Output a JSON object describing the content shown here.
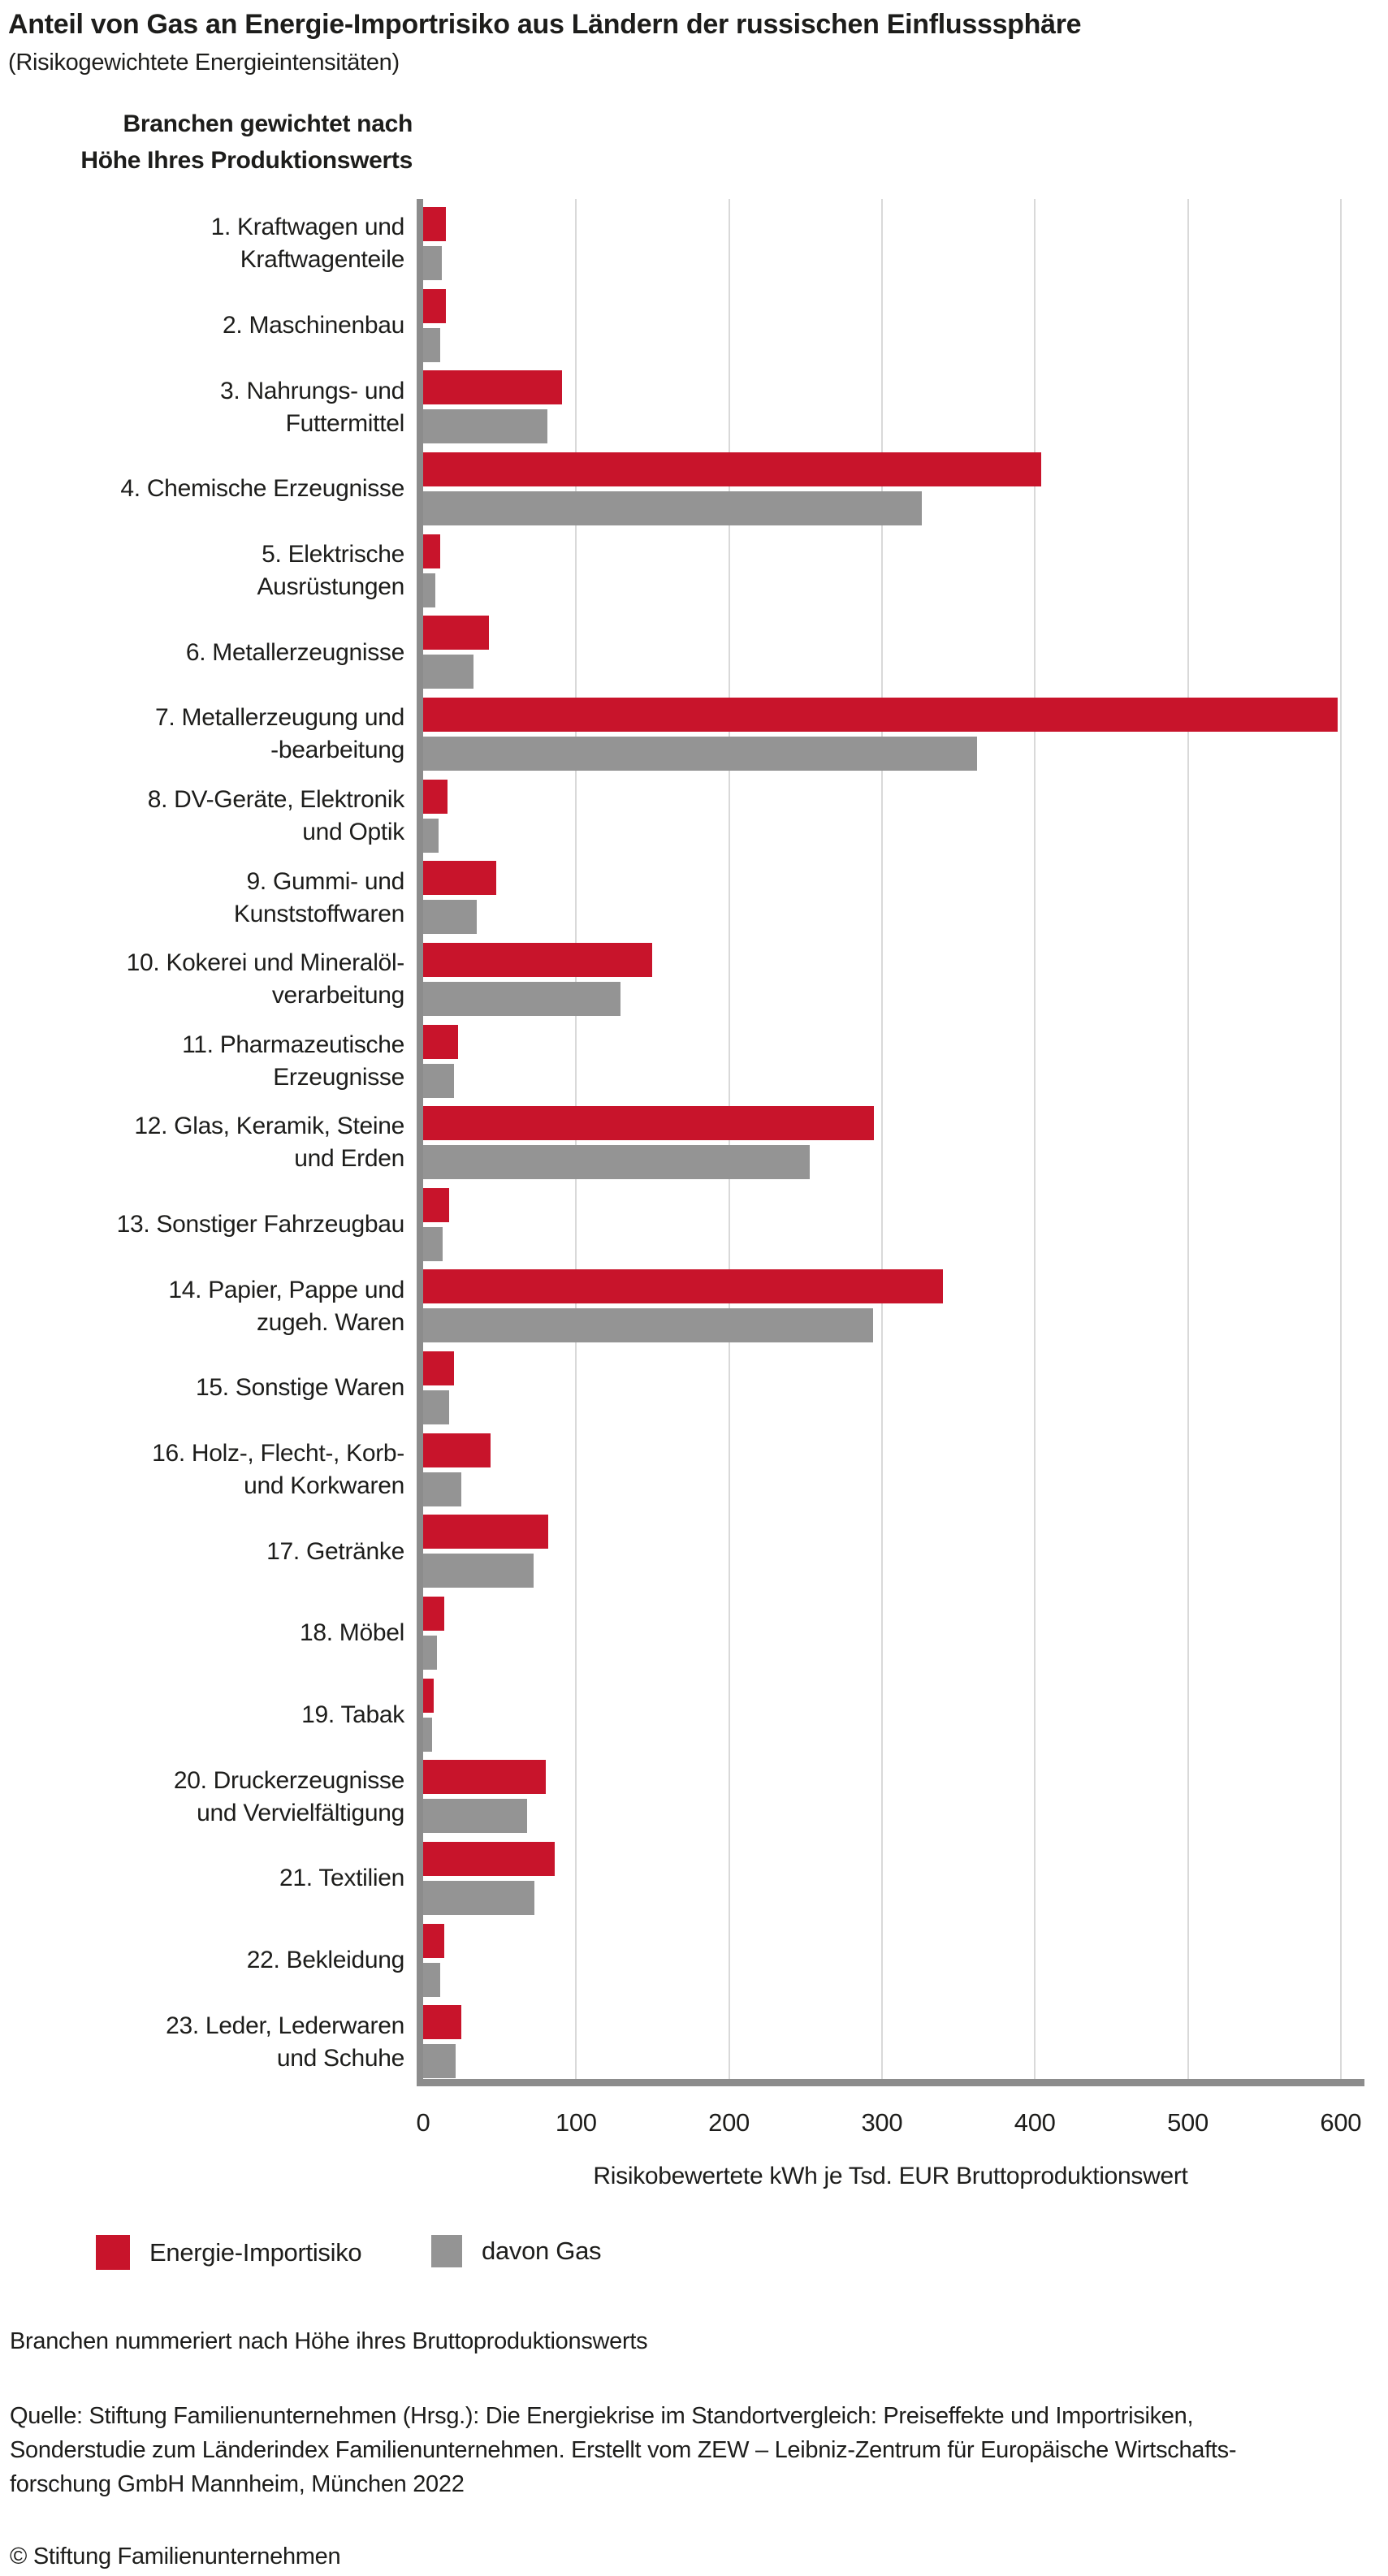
{
  "title": "Anteil von Gas an Energie-Importrisiko aus Ländern der russischen Einflusssphäre",
  "subtitle": "(Risikogewichtete Energieintensitäten)",
  "column_header": {
    "line1": "Branchen gewichtet nach",
    "line2": "Höhe Ihres Produktionswerts"
  },
  "chart_data": {
    "type": "bar",
    "orientation": "horizontal",
    "title": "Anteil von Gas an Energie-Importrisiko aus Ländern der russischen Einflusssphäre",
    "xlabel": "Risikobewertete kWh je Tsd. EUR Bruttoproduktionswert",
    "ylabel": "Branchen gewichtet nach Höhe Ihres Produktionswerts",
    "xlim": [
      0,
      600
    ],
    "xticks": [
      0,
      100,
      200,
      300,
      400,
      500,
      600
    ],
    "grid": true,
    "legend_position": "bottom",
    "categories": [
      {
        "lines": [
          "1. Kraftwagen und",
          "Kraftwagenteile"
        ]
      },
      {
        "lines": [
          "2. Maschinenbau"
        ]
      },
      {
        "lines": [
          "3. Nahrungs- und",
          "Futtermittel"
        ]
      },
      {
        "lines": [
          "4. Chemische Erzeugnisse"
        ]
      },
      {
        "lines": [
          "5. Elektrische",
          "Ausrüstungen"
        ]
      },
      {
        "lines": [
          "6. Metallerzeugnisse"
        ]
      },
      {
        "lines": [
          "7. Metallerzeugung und",
          "-bearbeitung"
        ]
      },
      {
        "lines": [
          "8. DV-Geräte, Elektronik",
          "und Optik"
        ]
      },
      {
        "lines": [
          "9. Gummi- und",
          "Kunststoffwaren"
        ]
      },
      {
        "lines": [
          "10. Kokerei und Mineralöl-",
          "verarbeitung"
        ]
      },
      {
        "lines": [
          "11. Pharmazeutische",
          "Erzeugnisse"
        ]
      },
      {
        "lines": [
          "12. Glas, Keramik, Steine",
          "und Erden"
        ]
      },
      {
        "lines": [
          "13. Sonstiger Fahrzeugbau"
        ]
      },
      {
        "lines": [
          "14. Papier, Pappe und",
          "zugeh. Waren"
        ]
      },
      {
        "lines": [
          "15. Sonstige Waren"
        ]
      },
      {
        "lines": [
          "16. Holz-, Flecht-, Korb-",
          "und Korkwaren"
        ]
      },
      {
        "lines": [
          "17. Getränke"
        ]
      },
      {
        "lines": [
          "18. Möbel"
        ]
      },
      {
        "lines": [
          "19. Tabak"
        ]
      },
      {
        "lines": [
          "20. Druckerzeugnisse",
          "und Vervielfältigung"
        ]
      },
      {
        "lines": [
          "21. Textilien"
        ]
      },
      {
        "lines": [
          "22. Bekleidung"
        ]
      },
      {
        "lines": [
          "23. Leder, Lederwaren",
          "und Schuhe"
        ]
      }
    ],
    "series": [
      {
        "name": "Energie-Importisiko",
        "color": "#c8142b",
        "values": [
          15,
          15,
          91,
          404,
          11,
          43,
          598,
          16,
          48,
          150,
          23,
          295,
          17,
          340,
          20,
          44,
          82,
          14,
          7,
          80,
          86,
          14,
          25
        ]
      },
      {
        "name": "davon Gas",
        "color": "#949494",
        "values": [
          12,
          11,
          81,
          326,
          8,
          33,
          362,
          10,
          35,
          129,
          20,
          253,
          13,
          294,
          17,
          25,
          72,
          9,
          6,
          68,
          73,
          11,
          21
        ]
      }
    ]
  },
  "footnotes": {
    "note": "Branchen nummeriert nach Höhe ihres Bruttoproduktionswerts",
    "source_line1": "Quelle: Stiftung Familienunternehmen (Hrsg.): Die Energiekrise im Standortvergleich: Preiseffekte und Importrisiken,",
    "source_line2": "Sonderstudie zum Länderindex Familienunternehmen. Erstellt vom ZEW – Leibniz-Zentrum für Europäische Wirtschafts-",
    "source_line3": "forschung GmbH Mannheim, München 2022"
  },
  "copyright": "© Stiftung Familienunternehmen",
  "colors": {
    "bar_red": "#c8142b",
    "bar_gray": "#949494",
    "axis": "#8c8c8c",
    "gridline": "#d9d9d9",
    "text": "#1d1d1b"
  }
}
